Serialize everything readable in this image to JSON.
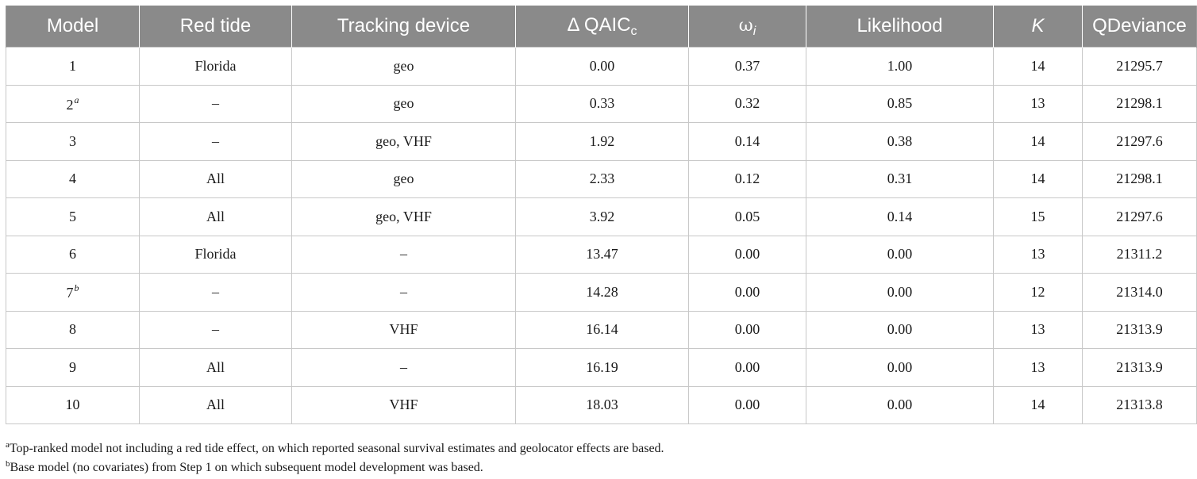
{
  "headers": {
    "model": "Model",
    "red_tide": "Red tide",
    "tracking_device": "Tracking device",
    "delta_qaic_prefix": "Δ QAIC",
    "delta_qaic_sub": "c",
    "omega_symbol": "ω",
    "omega_sub": "i",
    "likelihood": "Likelihood",
    "k": "K",
    "qdeviance": "QDeviance"
  },
  "rows": [
    {
      "model": "1",
      "mark": "",
      "red_tide": "Florida",
      "tracking_device": "geo",
      "delta_qaicc": "0.00",
      "omega": "0.37",
      "likelihood": "1.00",
      "k": "14",
      "qdeviance": "21295.7"
    },
    {
      "model": "2",
      "mark": "a",
      "red_tide": "–",
      "tracking_device": "geo",
      "delta_qaicc": "0.33",
      "omega": "0.32",
      "likelihood": "0.85",
      "k": "13",
      "qdeviance": "21298.1"
    },
    {
      "model": "3",
      "mark": "",
      "red_tide": "–",
      "tracking_device": "geo, VHF",
      "delta_qaicc": "1.92",
      "omega": "0.14",
      "likelihood": "0.38",
      "k": "14",
      "qdeviance": "21297.6"
    },
    {
      "model": "4",
      "mark": "",
      "red_tide": "All",
      "tracking_device": "geo",
      "delta_qaicc": "2.33",
      "omega": "0.12",
      "likelihood": "0.31",
      "k": "14",
      "qdeviance": "21298.1"
    },
    {
      "model": "5",
      "mark": "",
      "red_tide": "All",
      "tracking_device": "geo, VHF",
      "delta_qaicc": "3.92",
      "omega": "0.05",
      "likelihood": "0.14",
      "k": "15",
      "qdeviance": "21297.6"
    },
    {
      "model": "6",
      "mark": "",
      "red_tide": "Florida",
      "tracking_device": "–",
      "delta_qaicc": "13.47",
      "omega": "0.00",
      "likelihood": "0.00",
      "k": "13",
      "qdeviance": "21311.2"
    },
    {
      "model": "7",
      "mark": "b",
      "red_tide": "–",
      "tracking_device": "–",
      "delta_qaicc": "14.28",
      "omega": "0.00",
      "likelihood": "0.00",
      "k": "12",
      "qdeviance": "21314.0"
    },
    {
      "model": "8",
      "mark": "",
      "red_tide": "–",
      "tracking_device": "VHF",
      "delta_qaicc": "16.14",
      "omega": "0.00",
      "likelihood": "0.00",
      "k": "13",
      "qdeviance": "21313.9"
    },
    {
      "model": "9",
      "mark": "",
      "red_tide": "All",
      "tracking_device": "–",
      "delta_qaicc": "16.19",
      "omega": "0.00",
      "likelihood": "0.00",
      "k": "13",
      "qdeviance": "21313.9"
    },
    {
      "model": "10",
      "mark": "",
      "red_tide": "All",
      "tracking_device": "VHF",
      "delta_qaicc": "18.03",
      "omega": "0.00",
      "likelihood": "0.00",
      "k": "14",
      "qdeviance": "21313.8"
    }
  ],
  "footnotes": [
    {
      "mark": "a",
      "text": "Top-ranked model not including a red tide effect, on which reported seasonal survival estimates and geolocator effects are based."
    },
    {
      "mark": "b",
      "text": "Base model (no covariates) from Step 1 on which subsequent model development was based."
    }
  ]
}
